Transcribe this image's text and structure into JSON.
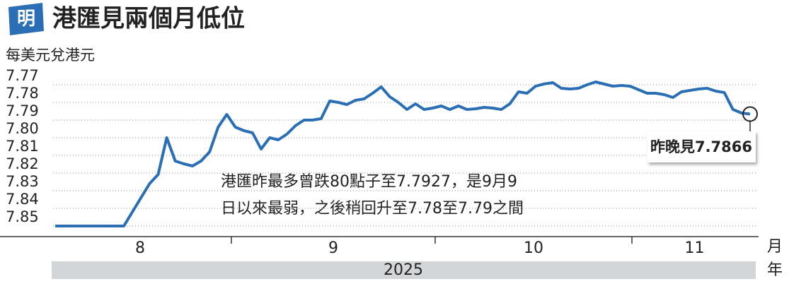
{
  "logo": "明",
  "chart_data": {
    "type": "line",
    "title": "港匯見兩個月低位",
    "y_label": "每美元兌港元",
    "values": [
      7.85,
      7.85,
      7.85,
      7.85,
      7.85,
      7.85,
      7.85,
      7.85,
      7.85,
      7.842,
      7.834,
      7.826,
      7.8208,
      7.8,
      7.8132,
      7.8148,
      7.816,
      7.8132,
      7.808,
      7.794,
      7.7868,
      7.794,
      7.796,
      7.7972,
      7.8064,
      7.8,
      7.8012,
      7.798,
      7.7932,
      7.79,
      7.79,
      7.7892,
      7.7792,
      7.78,
      7.7812,
      7.7788,
      7.778,
      7.7748,
      7.7712,
      7.7768,
      7.78,
      7.784,
      7.7808,
      7.784,
      7.7832,
      7.782,
      7.784,
      7.782,
      7.784,
      7.7836,
      7.7828,
      7.7832,
      7.784,
      7.7808,
      7.774,
      7.7748,
      7.7708,
      7.7695,
      7.7688,
      7.772,
      7.7724,
      7.772,
      7.77,
      7.7684,
      7.7696,
      7.7708,
      7.7704,
      7.7708,
      7.7728,
      7.7748,
      7.7748,
      7.7756,
      7.7772,
      7.774,
      7.7732,
      7.7724,
      7.772,
      7.7736,
      7.7744,
      7.784,
      7.786,
      7.7866
    ],
    "color": "#2a6fb5",
    "ylim": [
      7.85,
      7.77
    ],
    "yticks": [
      7.77,
      7.78,
      7.79,
      {
        "value": 7.8,
        "label": "7.80"
      },
      7.81,
      7.82,
      7.83,
      7.84,
      7.85
    ],
    "grid": true,
    "months": [
      "8",
      "9",
      "10",
      "11"
    ],
    "month_unit": "月",
    "year": "2025",
    "year_unit": "年",
    "callout": "昨晚見7.7866",
    "annotation": [
      "港匯昨最多曾跌80點子至7.7927，是9月9",
      "日以來最弱，之後稍回升至7.78至7.79之間"
    ]
  }
}
